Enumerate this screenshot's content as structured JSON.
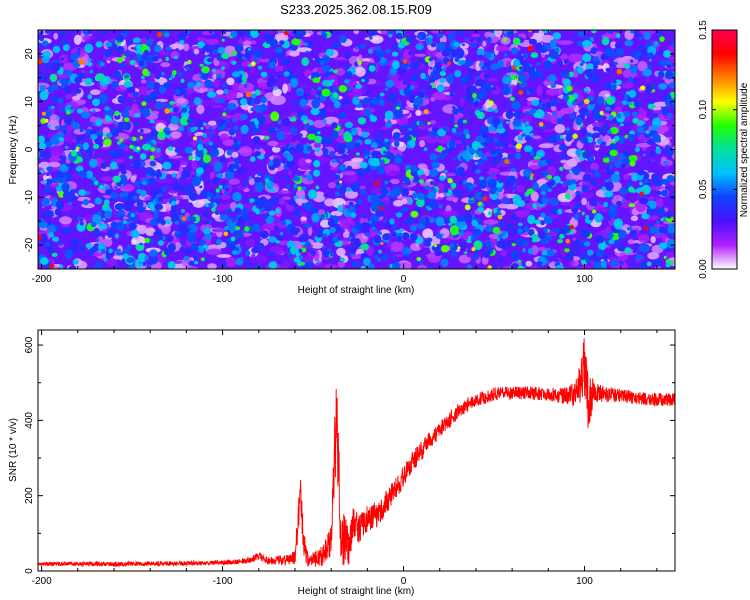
{
  "title": "S233.2025.362.08.15.R09",
  "chart_data": [
    {
      "type": "heatmap",
      "xlabel": "Height of straight line (km)",
      "ylabel": "Frequency (Hz)",
      "xlim": [
        -202,
        150
      ],
      "ylim": [
        -25,
        25
      ],
      "xticks": [
        "-200",
        "-100",
        "0",
        "100"
      ],
      "xtick_values": [
        -200,
        -100,
        0,
        100
      ],
      "yticks": [
        "-20",
        "-10",
        "0",
        "10",
        "20"
      ],
      "ytick_values": [
        -20,
        -10,
        0,
        10,
        20
      ],
      "colorbar": {
        "label": "Normalized spectral amplitude",
        "range": [
          0,
          0.15
        ],
        "ticks": [
          "0.00",
          "0.05",
          "0.10",
          "0.15"
        ],
        "tick_values": [
          0,
          0.05,
          0.1,
          0.15
        ],
        "colormap": [
          "#ffffff",
          "#b020ff",
          "#4a10ff",
          "#1040ff",
          "#00c0ff",
          "#00e0a0",
          "#20ff00",
          "#ffff00",
          "#ff8000",
          "#ff0000",
          "#ff0050"
        ]
      },
      "amplitude_typical": [
        0.02,
        0.06
      ],
      "amplitude_max": 0.14
    },
    {
      "type": "line",
      "xlabel": "Height of straight line (km)",
      "ylabel": "SNR (10 * v/v)",
      "xlim": [
        -202,
        150
      ],
      "ylim": [
        0,
        640
      ],
      "xticks": [
        "-200",
        "-100",
        "0",
        "100"
      ],
      "xtick_values": [
        -200,
        -100,
        0,
        100
      ],
      "yticks": [
        "0",
        "200",
        "400",
        "600"
      ],
      "ytick_values": [
        0,
        200,
        400,
        600
      ],
      "color": "#ff0000",
      "series": [
        {
          "name": "SNR",
          "x": [
            -202,
            -180,
            -160,
            -140,
            -120,
            -100,
            -90,
            -85,
            -80,
            -75,
            -70,
            -65,
            -60,
            -57,
            -55,
            -52,
            -50,
            -45,
            -40,
            -37,
            -35,
            -33,
            -30,
            -27,
            -25,
            -20,
            -15,
            -10,
            -5,
            0,
            5,
            10,
            15,
            20,
            25,
            30,
            35,
            40,
            45,
            50,
            60,
            70,
            80,
            90,
            95,
            98,
            100,
            102,
            105,
            110,
            120,
            130,
            140,
            150
          ],
          "y": [
            18,
            20,
            18,
            20,
            20,
            22,
            25,
            30,
            40,
            28,
            28,
            30,
            35,
            210,
            60,
            25,
            28,
            40,
            80,
            440,
            120,
            80,
            70,
            140,
            110,
            140,
            150,
            180,
            210,
            250,
            290,
            320,
            350,
            375,
            400,
            425,
            440,
            455,
            462,
            470,
            472,
            472,
            470,
            465,
            470,
            500,
            560,
            440,
            480,
            470,
            465,
            460,
            455,
            455
          ],
          "noise": [
            5,
            6,
            6,
            6,
            6,
            6,
            7,
            8,
            10,
            10,
            12,
            14,
            18,
            60,
            40,
            20,
            22,
            28,
            40,
            140,
            90,
            70,
            55,
            45,
            40,
            35,
            35,
            34,
            32,
            30,
            28,
            26,
            24,
            22,
            22,
            22,
            20,
            18,
            18,
            18,
            18,
            18,
            18,
            24,
            35,
            60,
            95,
            70,
            40,
            22,
            18,
            18,
            18,
            18
          ]
        }
      ]
    }
  ]
}
